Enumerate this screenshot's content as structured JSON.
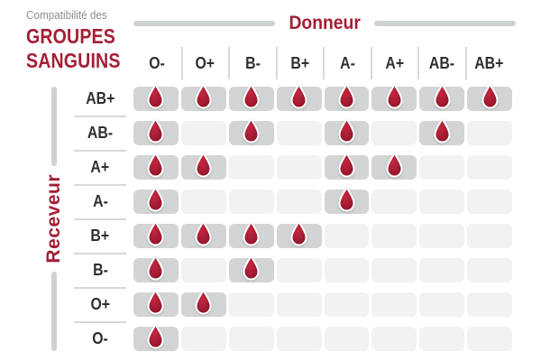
{
  "title": {
    "kicker": "Compatibilité des",
    "line1": "GROUPES",
    "line2": "SANGUINS"
  },
  "chart_data": {
    "type": "heatmap",
    "title": "Compatibilité des GROUPES SANGUINS",
    "x_axis_label": "Donneur",
    "y_axis_label": "Receveur",
    "columns": [
      "O-",
      "O+",
      "B-",
      "B+",
      "A-",
      "A+",
      "AB-",
      "AB+"
    ],
    "rows": [
      "AB+",
      "AB-",
      "A+",
      "A-",
      "B+",
      "B-",
      "O+",
      "O-"
    ],
    "matrix": [
      [
        1,
        1,
        1,
        1,
        1,
        1,
        1,
        1
      ],
      [
        1,
        0,
        1,
        0,
        1,
        0,
        1,
        0
      ],
      [
        1,
        1,
        0,
        0,
        1,
        1,
        0,
        0
      ],
      [
        1,
        0,
        0,
        0,
        1,
        0,
        0,
        0
      ],
      [
        1,
        1,
        1,
        1,
        0,
        0,
        0,
        0
      ],
      [
        1,
        0,
        1,
        0,
        0,
        0,
        0,
        0
      ],
      [
        1,
        1,
        0,
        0,
        0,
        0,
        0,
        0
      ],
      [
        1,
        0,
        0,
        0,
        0,
        0,
        0,
        0
      ]
    ],
    "cell_true_marker": "blood-drop-icon",
    "compatibility_by_receiver": {
      "AB+": [
        "O-",
        "O+",
        "B-",
        "B+",
        "A-",
        "A+",
        "AB-",
        "AB+"
      ],
      "AB-": [
        "O-",
        "B-",
        "A-",
        "AB-"
      ],
      "A+": [
        "O-",
        "O+",
        "A-",
        "A+"
      ],
      "A-": [
        "O-",
        "A-"
      ],
      "B+": [
        "O-",
        "O+",
        "B-",
        "B+"
      ],
      "B-": [
        "O-",
        "B-"
      ],
      "O+": [
        "O-",
        "O+"
      ],
      "O-": [
        "O-"
      ]
    },
    "legend_position": "none",
    "grid": "off"
  },
  "colors": {
    "accent_red": "#a51e35",
    "drop_red": "#a81d33",
    "drop_red_dark": "#8a1126",
    "drop_red_light": "#c32840",
    "cell_filled": "#d2d4d5",
    "cell_empty": "#f2f2f2",
    "separator_gray": "#d6d8d9",
    "bar_gray": "#ced1d2",
    "muted_text": "#8d8d8d",
    "label_text": "#2d2f31",
    "background": "#ffffff"
  },
  "icons": {
    "compatible_marker": "blood-drop-icon"
  }
}
